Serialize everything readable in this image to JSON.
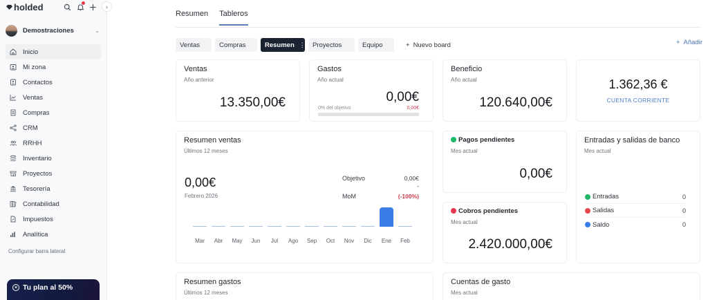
{
  "topbar": {
    "logo": "holded",
    "icons": [
      "search-icon",
      "bell-icon",
      "plus-icon"
    ],
    "collapse_icon": "chevron-right-icon"
  },
  "account": {
    "name": "Demostraciones"
  },
  "sidebar": {
    "items": [
      {
        "label": "Inicio",
        "icon": "home-icon",
        "active": true
      },
      {
        "label": "Mi zona",
        "icon": "badge-icon"
      },
      {
        "label": "Contactos",
        "icon": "contact-card-icon"
      },
      {
        "label": "Ventas",
        "icon": "chart-line-icon"
      },
      {
        "label": "Compras",
        "icon": "receipt-icon"
      },
      {
        "label": "CRM",
        "icon": "share-nodes-icon"
      },
      {
        "label": "RRHH",
        "icon": "users-icon"
      },
      {
        "label": "Inventario",
        "icon": "layers-icon"
      },
      {
        "label": "Proyectos",
        "icon": "folders-icon"
      },
      {
        "label": "Tesorería",
        "icon": "bank-icon"
      },
      {
        "label": "Contabilidad",
        "icon": "books-icon"
      },
      {
        "label": "Impuestos",
        "icon": "document-icon"
      },
      {
        "label": "Analítica",
        "icon": "bar-chart-icon"
      }
    ],
    "config_link": "Configurar barra lateral",
    "plan": {
      "title": "Tu plan al 50%"
    }
  },
  "main": {
    "tabs": [
      {
        "label": "Resumen",
        "active": false
      },
      {
        "label": "Tableros",
        "active": true
      }
    ],
    "boards": [
      {
        "label": "Ventas"
      },
      {
        "label": "Compras"
      },
      {
        "label": "Resumen",
        "active": true
      },
      {
        "label": "Proyectos"
      },
      {
        "label": "Equipo"
      }
    ],
    "new_board": "Nuevo board",
    "add": "Añadir"
  },
  "widgets": {
    "ventas": {
      "title": "Ventas",
      "sub": "Año anterior",
      "value": "13.350,00€"
    },
    "gastos": {
      "title": "Gastos",
      "sub": "Año actual",
      "value": "0,00€",
      "goal_label": "0% del objetivo",
      "goal_value": "0,00€"
    },
    "beneficio": {
      "title": "Beneficio",
      "sub": "Año actual",
      "value": "120.640,00€"
    },
    "cuenta": {
      "value": "1.362,36 €",
      "label": "CUENTA CORRIENTE"
    },
    "resumen_ventas": {
      "title": "Resumen ventas",
      "sub": "Últimos 12 meses",
      "value": "0,00€",
      "period": "Febrero 2026",
      "objetivo_label": "Objetivo",
      "objetivo_value": "0,00€",
      "dash": "-",
      "mom_label": "MoM",
      "mom_value": "(-100%)"
    },
    "pagos": {
      "title": "Pagos pendientes",
      "sub": "Mes actual",
      "value": "0,00€",
      "color": "#1fb86a"
    },
    "cobros": {
      "title": "Cobros pendientes",
      "sub": "Mes actual",
      "value": "2.420.000,00€",
      "color": "#e5384f"
    },
    "banco": {
      "title": "Entradas y salidas de banco",
      "sub": "Mes actual",
      "rows": [
        {
          "label": "Entradas",
          "value": "0",
          "color": "#1fb86a"
        },
        {
          "label": "Salidas",
          "value": "0",
          "color": "#e5484d"
        },
        {
          "label": "Saldo",
          "value": "0",
          "color": "#3b7de8"
        }
      ]
    },
    "resumen_gastos": {
      "title": "Resumen gastos",
      "sub": "Últimos 12 meses"
    },
    "cuentas_gasto": {
      "title": "Cuentas de gasto",
      "sub": "Mes actual"
    }
  },
  "chart_data": {
    "type": "bar",
    "title": "Resumen ventas",
    "categories": [
      "Mar",
      "Abr",
      "May",
      "Jun",
      "Jul",
      "Ago",
      "Sep",
      "Oct",
      "Nov",
      "Dic",
      "Ene",
      "Feb"
    ],
    "values": [
      0,
      0,
      0,
      0,
      0,
      0,
      0,
      0,
      0,
      0,
      1,
      0
    ],
    "xlabel": "",
    "ylabel": "",
    "grid": false
  }
}
